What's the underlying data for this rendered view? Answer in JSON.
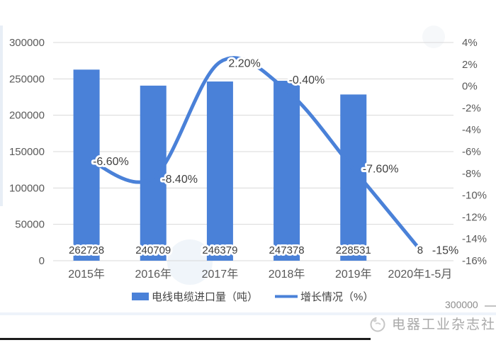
{
  "chart_data": {
    "type": "bar",
    "subtype": "combo-bar-line",
    "title": "",
    "categories": [
      "2015年",
      "2016年",
      "2017年",
      "2018年",
      "2019年",
      "2020年1-5月"
    ],
    "series": [
      {
        "name": "电线电缆进口量（吨）",
        "type": "bar",
        "values": [
          262728,
          240709,
          246379,
          247378,
          228531,
          null
        ],
        "labels": [
          "262728",
          "240709",
          "246379",
          "247378",
          "228531",
          "8"
        ]
      },
      {
        "name": "增长情况（%）",
        "type": "line",
        "values": [
          -6.6,
          -8.4,
          2.2,
          -0.4,
          -7.6,
          -15
        ],
        "labels": [
          "-6.60%",
          "-8.40%",
          "2.20%",
          "-0.40%",
          "-7.60%",
          "-15%"
        ]
      }
    ],
    "left_axis": {
      "min": 0,
      "max": 300000,
      "step": 50000,
      "tick_labels": [
        "300000",
        "250000",
        "200000",
        "150000",
        "100000",
        "50000",
        "0"
      ]
    },
    "right_axis": {
      "min": -16,
      "max": 4,
      "step": 2,
      "tick_labels": [
        "4%",
        "2%",
        "0%",
        "-2%",
        "-4%",
        "-6%",
        "-8%",
        "-10%",
        "-12%",
        "-14%",
        "-16%"
      ]
    },
    "legend": [
      {
        "swatch": "bar",
        "label": "电线电缆进口量（吨）"
      },
      {
        "swatch": "line",
        "label": "增长情况（%）"
      }
    ],
    "grid": "horizontal",
    "legend_position": "bottom",
    "colors": {
      "bar": "#4a81d8",
      "line": "#4a81d8",
      "gridline": "#d9d9d9",
      "axis_text": "#595959",
      "data_label": "#3f3f3f"
    }
  },
  "footer": {
    "next_chart_peek_label": "300000",
    "brand_text": "电器工业杂志社"
  }
}
